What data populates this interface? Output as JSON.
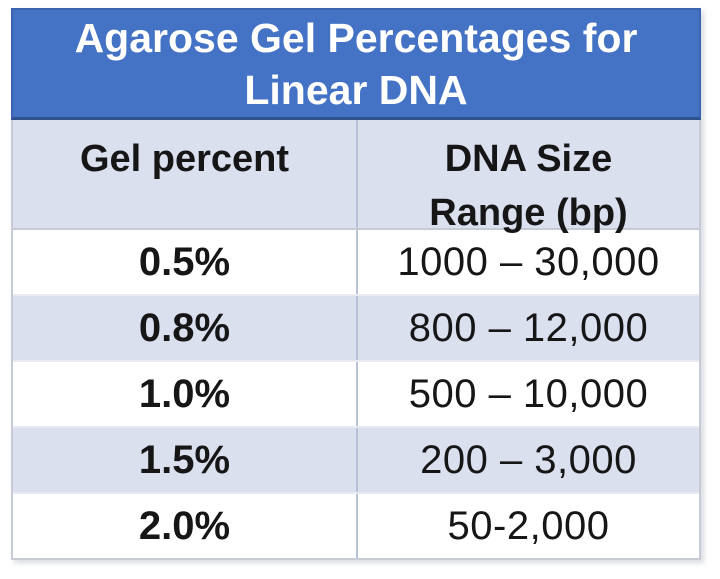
{
  "chart_data": {
    "type": "table",
    "title": "Agarose Gel Percentages for Linear DNA",
    "columns": [
      "Gel percent",
      "DNA Size Range (bp)"
    ],
    "rows": [
      [
        "0.5%",
        "1000 – 30,000"
      ],
      [
        "0.8%",
        "800 – 12,000"
      ],
      [
        "1.0%",
        "500 – 10,000"
      ],
      [
        "1.5%",
        "200 – 3,000"
      ],
      [
        "2.0%",
        "50-2,000"
      ]
    ],
    "layout": {
      "title_position": "top-banner",
      "banded_rows": true,
      "band_pattern": [
        "white",
        "light",
        "white",
        "light",
        "white"
      ]
    }
  },
  "colors": {
    "title_bg": "#4472C4",
    "title_border": "#2F528F",
    "title_edge": "#3C63AE",
    "title_text": "#FFFFFF",
    "band_light": "#DBE0EF",
    "row_white": "#FFFFFF",
    "outer_border": "#C6CBD6",
    "column_divider": "#B9C3D8",
    "row_separator": "#E9EBF2",
    "header_separator": "#C5CAD5",
    "cell_text": "#161616"
  }
}
